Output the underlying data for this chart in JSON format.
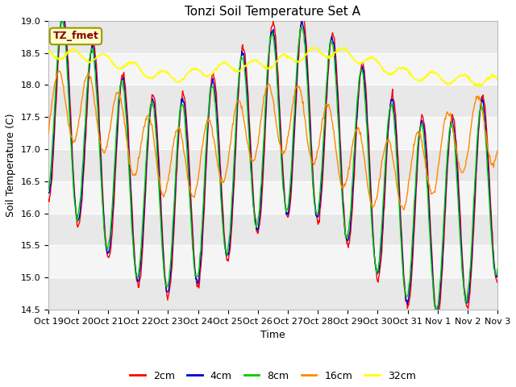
{
  "title": "Tonzi Soil Temperature Set A",
  "ylabel": "Soil Temperature (C)",
  "xlabel": "Time",
  "annotation": "TZ_fmet",
  "ylim": [
    14.5,
    19.0
  ],
  "yticks": [
    14.5,
    15.0,
    15.5,
    16.0,
    16.5,
    17.0,
    17.5,
    18.0,
    18.5,
    19.0
  ],
  "xtick_labels": [
    "Oct 19",
    "Oct 20",
    "Oct 21",
    "Oct 22",
    "Oct 23",
    "Oct 24",
    "Oct 25",
    "Oct 26",
    "Oct 27",
    "Oct 28",
    "Oct 29",
    "Oct 30",
    "Oct 31",
    "Nov 1",
    "Nov 2",
    "Nov 3"
  ],
  "colors": {
    "2cm": "#ff0000",
    "4cm": "#0000cc",
    "8cm": "#00cc00",
    "16cm": "#ff8800",
    "32cm": "#ffff00"
  },
  "legend_labels": [
    "2cm",
    "4cm",
    "8cm",
    "16cm",
    "32cm"
  ],
  "bg_light": "#f0f0f0",
  "bg_dark": "#e0e0e0",
  "title_fontsize": 11,
  "axis_fontsize": 9,
  "tick_fontsize": 8
}
